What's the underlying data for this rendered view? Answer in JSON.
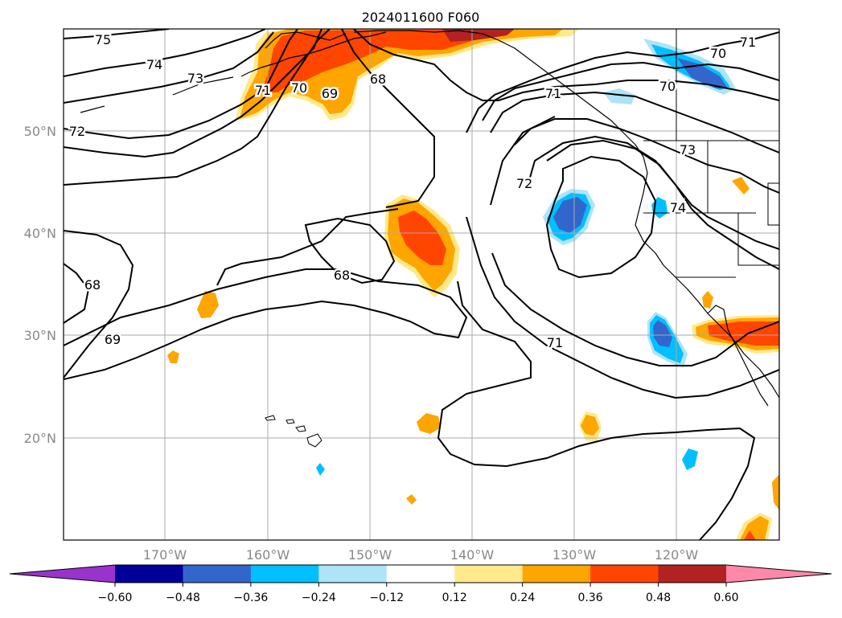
{
  "title": "2024011600 F060",
  "lat_labels": [
    "50°N",
    "40°N",
    "30°N",
    "20°N"
  ],
  "lon_labels": [
    "170°W",
    "160°W",
    "150°W",
    "140°W",
    "130°W",
    "120°W"
  ],
  "contour_labels": [
    "75",
    "74",
    "73",
    "72",
    "71",
    "70",
    "69",
    "68",
    "68",
    "69",
    "68",
    "72",
    "71",
    "70",
    "71",
    "73",
    "74",
    "70",
    "71"
  ],
  "colorbar": {
    "ticks": [
      "−0.60",
      "−0.48",
      "−0.36",
      "−0.24",
      "−0.12",
      "0.12",
      "0.24",
      "0.36",
      "0.48",
      "0.60"
    ],
    "colors": [
      "#9933cc",
      "#000099",
      "#3366cc",
      "#00bfff",
      "#aee3f8",
      "#ffffff",
      "#ffe98a",
      "#ffa500",
      "#ff4500",
      "#b22222",
      "#ff88aa"
    ]
  },
  "shading_colors": {
    "light_yellow": "#ffe98a",
    "orange": "#ffa500",
    "red_orange": "#ff4500",
    "dark_red": "#b22222",
    "light_blue": "#aee3f8",
    "cyan": "#00bfff",
    "blue": "#3366cc"
  }
}
